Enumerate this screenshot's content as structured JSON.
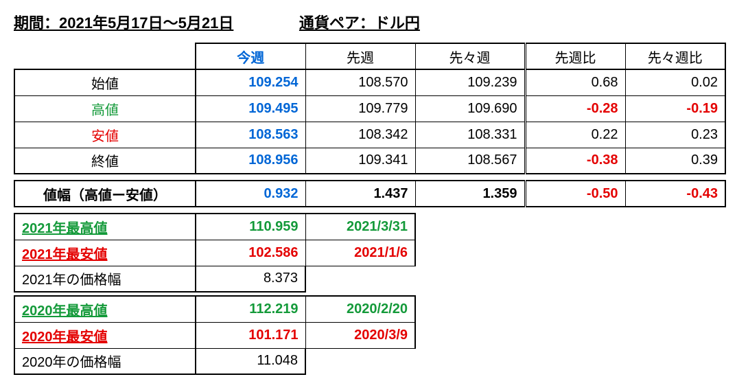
{
  "header": {
    "period_label": "期間：2021年5月17日～5月21日",
    "pair_label": "通貨ペア：ドル円"
  },
  "main": {
    "columns": [
      "今週",
      "先週",
      "先々週",
      "先週比",
      "先々週比"
    ],
    "row_labels": [
      "始値",
      "高値",
      "安値",
      "終値"
    ],
    "row_label_colors": [
      "#000000",
      "#149a3a",
      "#e40000",
      "#000000"
    ],
    "data": [
      [
        "109.254",
        "108.570",
        "109.239",
        "0.68",
        "0.02"
      ],
      [
        "109.495",
        "109.779",
        "109.690",
        "-0.28",
        "-0.19"
      ],
      [
        "108.563",
        "108.342",
        "108.331",
        "0.22",
        "0.23"
      ],
      [
        "108.956",
        "109.341",
        "108.567",
        "-0.38",
        "0.39"
      ]
    ],
    "diff_colors": [
      [
        "#000000",
        "#000000"
      ],
      [
        "#e40000",
        "#e40000"
      ],
      [
        "#000000",
        "#000000"
      ],
      [
        "#e40000",
        "#000000"
      ]
    ]
  },
  "range": {
    "label": "値幅（高値ー安値）",
    "values": [
      "0.932",
      "1.437",
      "1.359",
      "-0.50",
      "-0.43"
    ],
    "diff_colors": [
      "#e40000",
      "#e40000"
    ]
  },
  "year_blocks": [
    {
      "high_label": "2021年最高値",
      "high_value": "110.959",
      "high_date": "2021/3/31",
      "low_label": "2021年最安値",
      "low_value": "102.586",
      "low_date": "2021/1/6",
      "range_label": "2021年の価格幅",
      "range_value": "8.373"
    },
    {
      "high_label": "2020年最高値",
      "high_value": "112.219",
      "high_date": "2020/2/20",
      "low_label": "2020年最安値",
      "low_value": "101.171",
      "low_date": "2020/3/9",
      "range_label": "2020年の価格幅",
      "range_value": "11.048"
    }
  ]
}
